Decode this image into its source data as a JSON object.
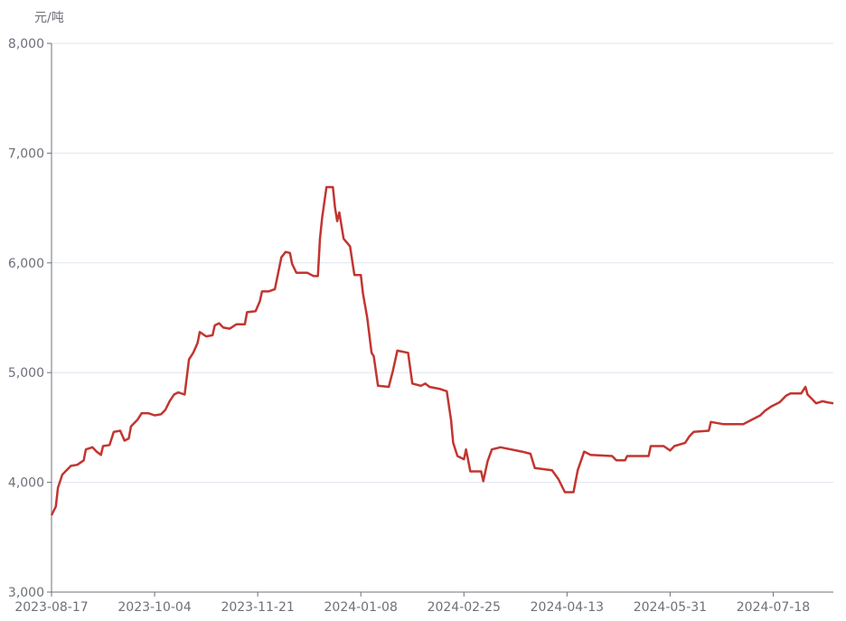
{
  "chart_data": {
    "type": "line",
    "y_label": "元/吨",
    "xlim": [
      "2023-08-17",
      "2024-08-15"
    ],
    "xticks": [
      "2023-08-17",
      "2023-10-04",
      "2023-11-21",
      "2024-01-08",
      "2024-02-25",
      "2024-04-13",
      "2024-05-31",
      "2024-07-18"
    ],
    "ylim": [
      3000,
      8000
    ],
    "yticks": [
      {
        "value": 3000,
        "label": "3,000"
      },
      {
        "value": 4000,
        "label": "4,000"
      },
      {
        "value": 5000,
        "label": "5,000"
      },
      {
        "value": 6000,
        "label": "6,000"
      },
      {
        "value": 7000,
        "label": "7,000"
      },
      {
        "value": 8000,
        "label": "8,000"
      }
    ],
    "grid": true,
    "x": [
      "2023-08-17",
      "2023-08-19",
      "2023-08-20",
      "2023-08-22",
      "2023-08-26",
      "2023-08-29",
      "2023-09-01",
      "2023-09-02",
      "2023-09-05",
      "2023-09-07",
      "2023-09-09",
      "2023-09-10",
      "2023-09-13",
      "2023-09-15",
      "2023-09-18",
      "2023-09-20",
      "2023-09-22",
      "2023-09-23",
      "2023-09-26",
      "2023-09-28",
      "2023-10-01",
      "2023-10-04",
      "2023-10-07",
      "2023-10-09",
      "2023-10-11",
      "2023-10-13",
      "2023-10-15",
      "2023-10-18",
      "2023-10-20",
      "2023-10-22",
      "2023-10-24",
      "2023-10-25",
      "2023-10-28",
      "2023-10-31",
      "2023-11-01",
      "2023-11-03",
      "2023-11-05",
      "2023-11-08",
      "2023-11-11",
      "2023-11-15",
      "2023-11-16",
      "2023-11-20",
      "2023-11-22",
      "2023-11-23",
      "2023-11-26",
      "2023-11-29",
      "2023-12-02",
      "2023-12-04",
      "2023-12-06",
      "2023-12-07",
      "2023-12-09",
      "2023-12-14",
      "2023-12-17",
      "2023-12-19",
      "2023-12-20",
      "2023-12-21",
      "2023-12-23",
      "2023-12-26",
      "2023-12-27",
      "2023-12-28",
      "2023-12-29",
      "2023-12-31",
      "2024-01-03",
      "2024-01-04",
      "2024-01-05",
      "2024-01-08",
      "2024-01-09",
      "2024-01-11",
      "2024-01-13",
      "2024-01-14",
      "2024-01-16",
      "2024-01-21",
      "2024-01-23",
      "2024-01-25",
      "2024-01-30",
      "2024-02-01",
      "2024-02-05",
      "2024-02-07",
      "2024-02-09",
      "2024-02-14",
      "2024-02-17",
      "2024-02-19",
      "2024-02-20",
      "2024-02-22",
      "2024-02-25",
      "2024-02-26",
      "2024-02-28",
      "2024-03-04",
      "2024-03-05",
      "2024-03-07",
      "2024-03-09",
      "2024-03-13",
      "2024-03-18",
      "2024-03-23",
      "2024-03-27",
      "2024-03-29",
      "2024-04-06",
      "2024-04-09",
      "2024-04-12",
      "2024-04-16",
      "2024-04-18",
      "2024-04-21",
      "2024-04-24",
      "2024-05-04",
      "2024-05-06",
      "2024-05-10",
      "2024-05-11",
      "2024-05-16",
      "2024-05-21",
      "2024-05-22",
      "2024-05-28",
      "2024-05-31",
      "2024-06-02",
      "2024-06-07",
      "2024-06-09",
      "2024-06-11",
      "2024-06-18",
      "2024-06-19",
      "2024-06-25",
      "2024-07-04",
      "2024-07-07",
      "2024-07-12",
      "2024-07-14",
      "2024-07-17",
      "2024-07-21",
      "2024-07-24",
      "2024-07-26",
      "2024-07-31",
      "2024-08-02",
      "2024-08-03",
      "2024-08-05",
      "2024-08-07",
      "2024-08-10",
      "2024-08-12",
      "2024-08-15"
    ],
    "series": [
      {
        "color": "#c23531",
        "values": [
          3700,
          3780,
          3950,
          4070,
          4150,
          4160,
          4200,
          4300,
          4320,
          4280,
          4250,
          4330,
          4340,
          4460,
          4470,
          4380,
          4400,
          4510,
          4570,
          4630,
          4630,
          4610,
          4620,
          4660,
          4740,
          4800,
          4820,
          4800,
          5120,
          5180,
          5270,
          5370,
          5330,
          5340,
          5430,
          5450,
          5410,
          5400,
          5440,
          5440,
          5550,
          5560,
          5650,
          5740,
          5740,
          5760,
          6050,
          6100,
          6090,
          5990,
          5910,
          5910,
          5880,
          5880,
          6220,
          6410,
          6690,
          6690,
          6500,
          6380,
          6460,
          6220,
          6150,
          6020,
          5890,
          5890,
          5720,
          5500,
          5180,
          5150,
          4880,
          4870,
          5020,
          5200,
          5180,
          4900,
          4880,
          4900,
          4870,
          4850,
          4830,
          4570,
          4360,
          4240,
          4210,
          4300,
          4100,
          4100,
          4010,
          4190,
          4300,
          4320,
          4300,
          4280,
          4260,
          4130,
          4110,
          4030,
          3910,
          3910,
          4110,
          4280,
          4250,
          4240,
          4200,
          4200,
          4240,
          4240,
          4240,
          4330,
          4330,
          4290,
          4330,
          4360,
          4420,
          4460,
          4470,
          4550,
          4530,
          4530,
          4560,
          4610,
          4650,
          4690,
          4730,
          4790,
          4810,
          4810,
          4870,
          4800,
          4760,
          4720,
          4740,
          4730,
          4720
        ]
      }
    ]
  }
}
